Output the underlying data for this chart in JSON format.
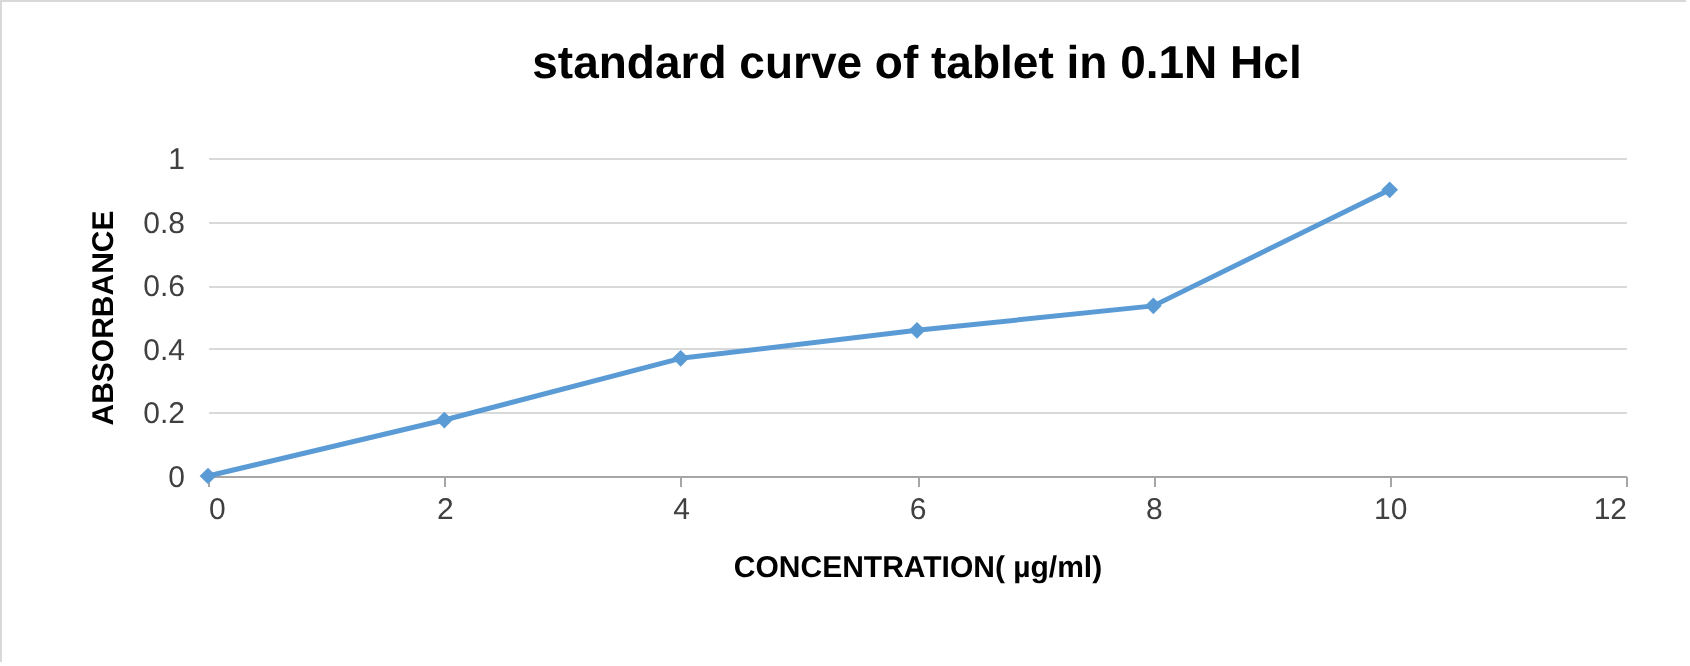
{
  "chart_data": {
    "type": "line",
    "title": "standard curve of tablet in 0.1N Hcl",
    "xlabel": "CONCENTRATION( µg/ml)",
    "ylabel": "ABSORBANCE",
    "x": [
      0,
      2,
      4,
      6,
      8,
      10
    ],
    "series": [
      {
        "color": "#5b9bd5",
        "values": [
          0,
          0.176,
          0.37,
          0.458,
          0.535,
          0.9
        ]
      }
    ],
    "xlim": [
      0,
      12
    ],
    "xticks": [
      0,
      2,
      4,
      6,
      8,
      10,
      12
    ],
    "ylim": [
      0,
      1
    ],
    "yticks": [
      0,
      0.2,
      0.4,
      0.6,
      0.8,
      1
    ],
    "grid": "y",
    "marker": "diamond",
    "line_style": "solid"
  }
}
